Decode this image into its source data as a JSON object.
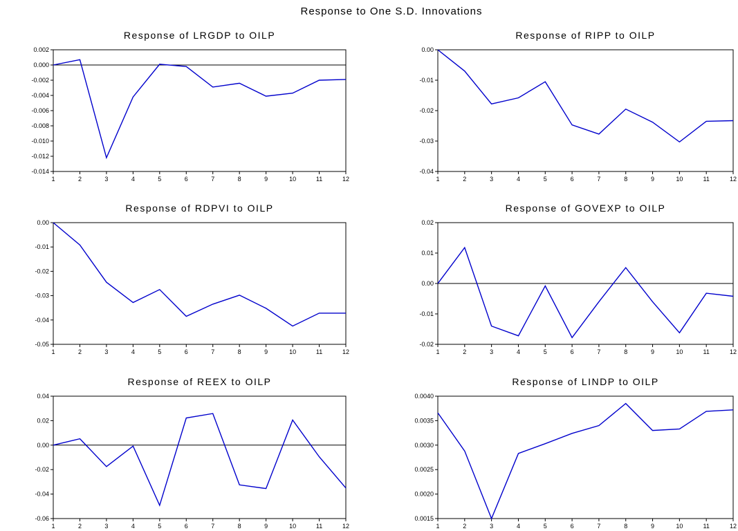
{
  "suptitle": "Response to One S.D. Innovations",
  "chart_data": [
    {
      "type": "line",
      "title": "Response of LRGDP to OILP",
      "x": [
        1,
        2,
        3,
        4,
        5,
        6,
        7,
        8,
        9,
        10,
        11,
        12
      ],
      "x_ticks": [
        "1",
        "2",
        "3",
        "4",
        "5",
        "6",
        "7",
        "8",
        "9",
        "10",
        "11",
        "12"
      ],
      "series": [
        {
          "name": "",
          "color": "#0000cc",
          "values": [
            0.0,
            0.0007,
            -0.0122,
            -0.0042,
            0.0001,
            -0.0002,
            -0.0029,
            -0.0024,
            -0.0041,
            -0.0037,
            -0.002,
            -0.0019
          ]
        }
      ],
      "ylim": [
        -0.014,
        0.002
      ],
      "y_ticks": [
        0.002,
        0.0,
        -0.002,
        -0.004,
        -0.006,
        -0.008,
        -0.01,
        -0.012,
        -0.014
      ],
      "y_tick_labels": [
        "0.002",
        "0.000",
        "-0.002",
        "-0.004",
        "-0.006",
        "-0.008",
        "-0.010",
        "-0.012",
        "-0.014"
      ],
      "zero_line": true
    },
    {
      "type": "line",
      "title": "Response of RIPP to OILP",
      "x": [
        1,
        2,
        3,
        4,
        5,
        6,
        7,
        8,
        9,
        10,
        11,
        12
      ],
      "x_ticks": [
        "1",
        "2",
        "3",
        "4",
        "5",
        "6",
        "7",
        "8",
        "9",
        "10",
        "11",
        "12"
      ],
      "series": [
        {
          "name": "",
          "color": "#0000cc",
          "values": [
            0.0,
            -0.007,
            -0.0178,
            -0.0158,
            -0.0105,
            -0.0247,
            -0.0277,
            -0.0195,
            -0.0238,
            -0.0303,
            -0.0235,
            -0.0233
          ]
        }
      ],
      "ylim": [
        -0.04,
        0.0
      ],
      "y_ticks": [
        0.0,
        -0.01,
        -0.02,
        -0.03,
        -0.04
      ],
      "y_tick_labels": [
        "0.00",
        "-0.01",
        "-0.02",
        "-0.03",
        "-0.04"
      ],
      "zero_line": false
    },
    {
      "type": "line",
      "title": "Response of RDPVI to OILP",
      "x": [
        1,
        2,
        3,
        4,
        5,
        6,
        7,
        8,
        9,
        10,
        11,
        12
      ],
      "x_ticks": [
        "1",
        "2",
        "3",
        "4",
        "5",
        "6",
        "7",
        "8",
        "9",
        "10",
        "11",
        "12"
      ],
      "series": [
        {
          "name": "",
          "color": "#0000cc",
          "values": [
            0.0,
            -0.0092,
            -0.0245,
            -0.0328,
            -0.0275,
            -0.0385,
            -0.0335,
            -0.0298,
            -0.0352,
            -0.0425,
            -0.0372,
            -0.0372
          ]
        }
      ],
      "ylim": [
        -0.05,
        0.0
      ],
      "y_ticks": [
        0.0,
        -0.01,
        -0.02,
        -0.03,
        -0.04,
        -0.05
      ],
      "y_tick_labels": [
        "0.00",
        "-0.01",
        "-0.02",
        "-0.03",
        "-0.04",
        "-0.05"
      ],
      "zero_line": false
    },
    {
      "type": "line",
      "title": "Response of GOVEXP to OILP",
      "x": [
        1,
        2,
        3,
        4,
        5,
        6,
        7,
        8,
        9,
        10,
        11,
        12
      ],
      "x_ticks": [
        "1",
        "2",
        "3",
        "4",
        "5",
        "6",
        "7",
        "8",
        "9",
        "10",
        "11",
        "12"
      ],
      "series": [
        {
          "name": "",
          "color": "#0000cc",
          "values": [
            0.0,
            0.0118,
            -0.014,
            -0.0172,
            -0.0008,
            -0.0178,
            -0.006,
            0.0052,
            -0.006,
            -0.0162,
            -0.0032,
            -0.0042
          ]
        }
      ],
      "ylim": [
        -0.02,
        0.02
      ],
      "y_ticks": [
        0.02,
        0.01,
        0.0,
        -0.01,
        -0.02
      ],
      "y_tick_labels": [
        "0.02",
        "0.01",
        "0.00",
        "-0.01",
        "-0.02"
      ],
      "zero_line": true
    },
    {
      "type": "line",
      "title": "Response of REEX to OILP",
      "x": [
        1,
        2,
        3,
        4,
        5,
        6,
        7,
        8,
        9,
        10,
        11,
        12
      ],
      "x_ticks": [
        "1",
        "2",
        "3",
        "4",
        "5",
        "6",
        "7",
        "8",
        "9",
        "10",
        "11",
        "12"
      ],
      "series": [
        {
          "name": "",
          "color": "#0000cc",
          "values": [
            0.0,
            0.0052,
            -0.0175,
            -0.0008,
            -0.0492,
            0.0222,
            0.0258,
            -0.0325,
            -0.0355,
            0.0205,
            -0.0095,
            -0.035
          ]
        }
      ],
      "ylim": [
        -0.06,
        0.04
      ],
      "y_ticks": [
        0.04,
        0.02,
        0.0,
        -0.02,
        -0.04,
        -0.06
      ],
      "y_tick_labels": [
        "0.04",
        "0.02",
        "0.00",
        "-0.02",
        "-0.04",
        "-0.06"
      ],
      "zero_line": true
    },
    {
      "type": "line",
      "title": "Response of LINDP to OILP",
      "x": [
        1,
        2,
        3,
        4,
        5,
        6,
        7,
        8,
        9,
        10,
        11,
        12
      ],
      "x_ticks": [
        "1",
        "2",
        "3",
        "4",
        "5",
        "6",
        "7",
        "8",
        "9",
        "10",
        "11",
        "12"
      ],
      "series": [
        {
          "name": "",
          "color": "#0000cc",
          "values": [
            0.00366,
            0.00288,
            0.0015,
            0.00283,
            0.00303,
            0.00324,
            0.0034,
            0.00385,
            0.0033,
            0.00333,
            0.00369,
            0.00372
          ]
        }
      ],
      "ylim": [
        0.0015,
        0.004
      ],
      "y_ticks": [
        0.004,
        0.0035,
        0.003,
        0.0025,
        0.002,
        0.0015
      ],
      "y_tick_labels": [
        "0.0040",
        "0.0035",
        "0.0030",
        "0.0025",
        "0.0020",
        "0.0015"
      ],
      "zero_line": false
    }
  ]
}
